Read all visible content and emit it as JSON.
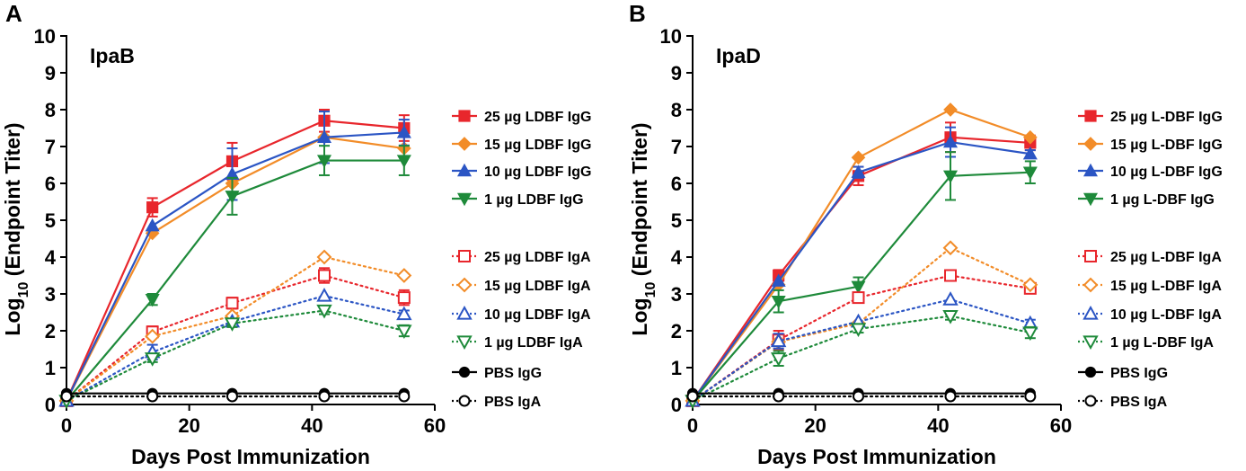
{
  "colors": {
    "s25": "#e8262c",
    "s15": "#f28c28",
    "s10": "#2b55c4",
    "s1": "#1e8a3a",
    "pbs": "#000000"
  },
  "chart_data": [
    {
      "type": "line",
      "panel_letter": "A",
      "title": "IpaB",
      "xlabel": "Days Post Immunization",
      "ylabel_main": "Log",
      "ylabel_sub": "10",
      "ylabel_rest": " (Endpoint Titer)",
      "xlim": [
        0,
        60
      ],
      "ylim": [
        0,
        10
      ],
      "xticks": [
        "0",
        "20",
        "40",
        "60"
      ],
      "yticks": [
        "0",
        "1",
        "2",
        "3",
        "4",
        "5",
        "6",
        "7",
        "8",
        "9",
        "10"
      ],
      "x": [
        0,
        14,
        27,
        42,
        55
      ],
      "series": [
        {
          "name": "25 µg LDBF IgG",
          "key": "s25",
          "marker": "square",
          "filled": true,
          "dotted": false,
          "values": [
            0.1,
            5.35,
            6.6,
            7.7,
            7.5
          ],
          "errors": [
            0,
            0.25,
            0.5,
            0.3,
            0.35
          ]
        },
        {
          "name": "15 µg LDBF IgG",
          "key": "s15",
          "marker": "diamond",
          "filled": true,
          "dotted": false,
          "values": [
            0.1,
            4.65,
            6.0,
            7.25,
            6.95
          ],
          "errors": [
            0,
            0,
            0,
            0,
            0
          ]
        },
        {
          "name": "10 µg LDBF IgG",
          "key": "s10",
          "marker": "triangle",
          "filled": true,
          "dotted": false,
          "values": [
            0.1,
            4.85,
            6.25,
            7.25,
            7.38
          ],
          "errors": [
            0,
            0,
            0.7,
            0.7,
            0.35
          ]
        },
        {
          "name": "1 µg LDBF IgG",
          "key": "s1",
          "marker": "triangle-down",
          "filled": true,
          "dotted": false,
          "values": [
            0.1,
            2.85,
            5.65,
            6.62,
            6.62
          ],
          "errors": [
            0,
            0.15,
            0.5,
            0.4,
            0.4
          ]
        },
        {
          "name": "25 µg LDBF IgA",
          "key": "s25",
          "marker": "square",
          "filled": false,
          "dotted": true,
          "values": [
            0.1,
            1.97,
            2.75,
            3.5,
            2.9
          ],
          "errors": [
            0,
            0.15,
            0.15,
            0.2,
            0.2
          ]
        },
        {
          "name": "15 µg LDBF IgA",
          "key": "s15",
          "marker": "diamond",
          "filled": false,
          "dotted": true,
          "values": [
            0.1,
            1.85,
            2.4,
            4.0,
            3.5
          ],
          "errors": [
            0,
            0,
            0,
            0,
            0
          ]
        },
        {
          "name": "10 µg LDBF IgA",
          "key": "s10",
          "marker": "triangle",
          "filled": false,
          "dotted": true,
          "values": [
            0.1,
            1.42,
            2.25,
            2.95,
            2.45
          ],
          "errors": [
            0,
            0.2,
            0,
            0,
            0.1
          ]
        },
        {
          "name": "1 µg LDBF IgA",
          "key": "s1",
          "marker": "triangle-down",
          "filled": false,
          "dotted": true,
          "values": [
            0.1,
            1.25,
            2.2,
            2.55,
            2.0
          ],
          "errors": [
            0,
            0.1,
            0.1,
            0.1,
            0.15
          ]
        },
        {
          "name": "PBS IgG",
          "key": "pbs",
          "marker": "circle",
          "filled": true,
          "dotted": false,
          "values": [
            0.3,
            0.3,
            0.3,
            0.3,
            0.3
          ],
          "errors": [
            0,
            0,
            0,
            0,
            0
          ]
        },
        {
          "name": "PBS IgA",
          "key": "pbs",
          "marker": "circle",
          "filled": false,
          "dotted": true,
          "values": [
            0.22,
            0.22,
            0.22,
            0.22,
            0.22
          ],
          "errors": [
            0,
            0,
            0,
            0,
            0
          ]
        }
      ]
    },
    {
      "type": "line",
      "panel_letter": "B",
      "title": "IpaD",
      "xlabel": "Days Post Immunization",
      "ylabel_main": "Log",
      "ylabel_sub": "10",
      "ylabel_rest": " (Endpoint Titer)",
      "xlim": [
        0,
        60
      ],
      "ylim": [
        0,
        10
      ],
      "xticks": [
        "0",
        "20",
        "40",
        "60"
      ],
      "yticks": [
        "0",
        "1",
        "2",
        "3",
        "4",
        "5",
        "6",
        "7",
        "8",
        "9",
        "10"
      ],
      "x": [
        0,
        14,
        27,
        42,
        55
      ],
      "series": [
        {
          "name": "25 µg L-DBF IgG",
          "key": "s25",
          "marker": "square",
          "filled": true,
          "dotted": false,
          "values": [
            0.1,
            3.5,
            6.2,
            7.25,
            7.1
          ],
          "errors": [
            0,
            0.15,
            0.25,
            0.4,
            0.2
          ]
        },
        {
          "name": "15 µg L-DBF IgG",
          "key": "s15",
          "marker": "diamond",
          "filled": true,
          "dotted": false,
          "values": [
            0.1,
            3.25,
            6.7,
            8.0,
            7.25
          ],
          "errors": [
            0,
            0,
            0,
            0,
            0
          ]
        },
        {
          "name": "10 µg L-DBF IgG",
          "key": "s10",
          "marker": "triangle",
          "filled": true,
          "dotted": false,
          "values": [
            0.1,
            3.35,
            6.3,
            7.12,
            6.8
          ],
          "errors": [
            0,
            0,
            0.15,
            0.4,
            0.1
          ]
        },
        {
          "name": "1 µg L-DBF IgG",
          "key": "s1",
          "marker": "triangle-down",
          "filled": true,
          "dotted": false,
          "values": [
            0.1,
            2.8,
            3.2,
            6.2,
            6.3
          ],
          "errors": [
            0,
            0.3,
            0.25,
            0.65,
            0.3
          ]
        },
        {
          "name": "25 µg L-DBF IgA",
          "key": "s25",
          "marker": "square",
          "filled": false,
          "dotted": true,
          "values": [
            0.1,
            1.75,
            2.9,
            3.5,
            3.15
          ],
          "errors": [
            0,
            0.25,
            0.1,
            0.1,
            0.1
          ]
        },
        {
          "name": "15 µg L-DBF IgA",
          "key": "s15",
          "marker": "diamond",
          "filled": false,
          "dotted": true,
          "values": [
            0.1,
            1.7,
            2.2,
            4.25,
            3.25
          ],
          "errors": [
            0,
            0,
            0,
            0,
            0
          ]
        },
        {
          "name": "10 µg L-DBF IgA",
          "key": "s10",
          "marker": "triangle",
          "filled": false,
          "dotted": true,
          "values": [
            0.1,
            1.72,
            2.25,
            2.85,
            2.2
          ],
          "errors": [
            0,
            0.2,
            0,
            0,
            0.1
          ]
        },
        {
          "name": "1 µg L-DBF IgA",
          "key": "s1",
          "marker": "triangle-down",
          "filled": false,
          "dotted": true,
          "values": [
            0.1,
            1.25,
            2.05,
            2.4,
            1.95
          ],
          "errors": [
            0,
            0.2,
            0.1,
            0.1,
            0.15
          ]
        },
        {
          "name": "PBS IgG",
          "key": "pbs",
          "marker": "circle",
          "filled": true,
          "dotted": false,
          "values": [
            0.3,
            0.3,
            0.3,
            0.3,
            0.3
          ],
          "errors": [
            0,
            0,
            0,
            0,
            0
          ]
        },
        {
          "name": "PBS IgA",
          "key": "pbs",
          "marker": "circle",
          "filled": false,
          "dotted": true,
          "values": [
            0.22,
            0.22,
            0.22,
            0.22,
            0.22
          ],
          "errors": [
            0,
            0,
            0,
            0,
            0
          ]
        }
      ]
    }
  ]
}
